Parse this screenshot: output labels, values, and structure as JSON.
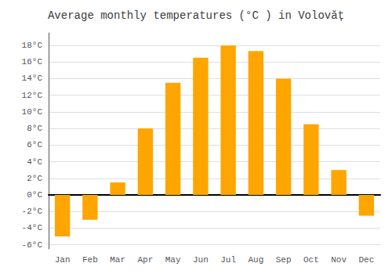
{
  "chart_data": {
    "type": "bar",
    "title": "Average monthly temperatures (°C ) in Volovăț",
    "categories": [
      "Jan",
      "Feb",
      "Mar",
      "Apr",
      "May",
      "Jun",
      "Jul",
      "Aug",
      "Sep",
      "Oct",
      "Nov",
      "Dec"
    ],
    "values": [
      -5.0,
      -3.0,
      1.5,
      8.0,
      13.5,
      16.5,
      18.0,
      17.3,
      14.0,
      8.5,
      3.0,
      -2.5
    ],
    "color": "#FFA500",
    "ylim": [
      -6.5,
      19.5
    ],
    "yticks": [
      {
        "value": -6,
        "label": "-6°C"
      },
      {
        "value": -4,
        "label": "-4°C"
      },
      {
        "value": -2,
        "label": "-2°C"
      },
      {
        "value": 0,
        "label": "0°C"
      },
      {
        "value": 2,
        "label": "2°C"
      },
      {
        "value": 4,
        "label": "4°C"
      },
      {
        "value": 6,
        "label": "6°C"
      },
      {
        "value": 8,
        "label": "8°C"
      },
      {
        "value": 10,
        "label": "10°C"
      },
      {
        "value": 12,
        "label": "12°C"
      },
      {
        "value": 14,
        "label": "14°C"
      },
      {
        "value": 16,
        "label": "16°C"
      },
      {
        "value": 18,
        "label": "18°C"
      }
    ],
    "grid": true
  }
}
